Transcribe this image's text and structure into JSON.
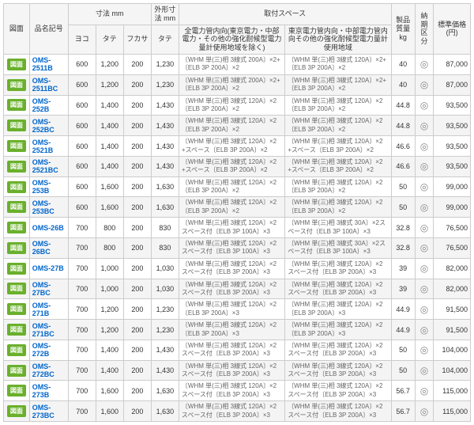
{
  "colors": {
    "button_bg": "#6ab02c",
    "button_fg": "#ffffff",
    "link": "#0066cc",
    "header_bg": "#f5f5f5",
    "row_even": "#f4f4f4",
    "row_odd": "#ffffff",
    "border": "#cccccc",
    "spec_text": "#666666"
  },
  "headers": {
    "btn": "図面",
    "name": "品名記号",
    "dim_group": "寸法 mm",
    "dim_w": "ヨコ",
    "dim_h": "タテ",
    "dim_d": "フカサ",
    "outer_group": "外形寸法 mm",
    "outer_h": "タテ",
    "spec_group": "取付スペース",
    "spec_a": "全電力管内向(東京電力・中部電力・その他の強化耐候型電力量計使用地域を除く)",
    "spec_b": "東京電力管内向・中部電力管内向その他の強化耐候型電力量計使用地域",
    "weight": "製品質量 kg",
    "status": "納期区分",
    "price": "標準価格 (円)"
  },
  "button_label": "図面",
  "status_glyph": "◎",
  "rows": [
    {
      "name": "OMS-2511B",
      "w": "600",
      "h": "1,200",
      "d": "200",
      "oh": "1,230",
      "sa": "〔WHM 単(三)相 3線式 200A〕×2+〔ELB 3P 200A〕×2",
      "sb": "〔WHM 単(三)相 3線式 120A〕×2+〔ELB 3P 200A〕×2",
      "wt": "40",
      "price": "87,000"
    },
    {
      "name": "OMS-2511BC",
      "w": "600",
      "h": "1,200",
      "d": "200",
      "oh": "1,230",
      "sa": "〔WHM 単(三)相 3線式 200A〕×2+〔ELB 3P 200A〕×2",
      "sb": "〔WHM 単(三)相 3線式 120A〕×2+〔ELB 3P 200A〕×2",
      "wt": "40",
      "price": "87,000"
    },
    {
      "name": "OMS-252B",
      "w": "600",
      "h": "1,400",
      "d": "200",
      "oh": "1,430",
      "sa": "〔WHM 単(三)相 3線式 120A〕×2 〔ELB 3P 200A〕×2",
      "sb": "〔WHM 単(三)相 3線式 120A〕×2 〔ELB 3P 200A〕×2",
      "wt": "44.8",
      "price": "93,500"
    },
    {
      "name": "OMS-252BC",
      "w": "600",
      "h": "1,400",
      "d": "200",
      "oh": "1,430",
      "sa": "〔WHM 単(三)相 3線式 120A〕×2 〔ELB 3P 200A〕×2",
      "sb": "〔WHM 単(三)相 3線式 120A〕×2 〔ELB 3P 200A〕×2",
      "wt": "44.8",
      "price": "93,500"
    },
    {
      "name": "OMS-2521B",
      "w": "600",
      "h": "1,400",
      "d": "200",
      "oh": "1,430",
      "sa": "〔WHM 単(三)相 3線式 120A〕×2+スペース〔ELB 3P 200A〕×2",
      "sb": "〔WHM 単(三)相 3線式 120A〕×2+スペース〔ELB 3P 200A〕×2",
      "wt": "46.6",
      "price": "93,500"
    },
    {
      "name": "OMS-2521BC",
      "w": "600",
      "h": "1,400",
      "d": "200",
      "oh": "1,430",
      "sa": "〔WHM 単(三)相 3線式 120A〕×2+スペース〔ELB 3P 200A〕×2",
      "sb": "〔WHM 単(三)相 3線式 120A〕×2+スペース〔ELB 3P 200A〕×2",
      "wt": "46.6",
      "price": "93,500"
    },
    {
      "name": "OMS-253B",
      "w": "600",
      "h": "1,600",
      "d": "200",
      "oh": "1,630",
      "sa": "〔WHM 単(三)相 3線式 120A〕×2 〔ELB 3P 200A〕×2",
      "sb": "〔WHM 単(三)相 3線式 120A〕×2 〔ELB 3P 200A〕×2",
      "wt": "50",
      "price": "99,000"
    },
    {
      "name": "OMS-253BC",
      "w": "600",
      "h": "1,600",
      "d": "200",
      "oh": "1,630",
      "sa": "〔WHM 単(三)相 3線式 120A〕×2 〔ELB 3P 200A〕×2",
      "sb": "〔WHM 単(三)相 3線式 120A〕×2 〔ELB 3P 200A〕×2",
      "wt": "50",
      "price": "99,000"
    },
    {
      "name": "OMS-26B",
      "w": "700",
      "h": "800",
      "d": "200",
      "oh": "830",
      "sa": "〔WHM 単(三)相 3線式 120A〕×2スペース付〔ELB 3P 100A〕×3",
      "sb": "〔WHM 単(三)相 3線式 30A〕×2スペース付〔ELB 3P 100A〕×3",
      "wt": "32.8",
      "price": "76,500"
    },
    {
      "name": "OMS-26BC",
      "w": "700",
      "h": "800",
      "d": "200",
      "oh": "830",
      "sa": "〔WHM 単(三)相 3線式 120A〕×2スペース付〔ELB 3P 100A〕×3",
      "sb": "〔WHM 単(三)相 3線式 30A〕×2スペース付〔ELB 3P 100A〕×3",
      "wt": "32.8",
      "price": "76,500"
    },
    {
      "name": "OMS-27B",
      "w": "700",
      "h": "1,000",
      "d": "200",
      "oh": "1,030",
      "sa": "〔WHM 単(三)相 3線式 120A〕×2スペース付〔ELB 3P 200A〕×3",
      "sb": "〔WHM 単(三)相 3線式 120A〕×2スペース付〔ELB 3P 200A〕×3",
      "wt": "39",
      "price": "82,000"
    },
    {
      "name": "OMS-27BC",
      "w": "700",
      "h": "1,000",
      "d": "200",
      "oh": "1,030",
      "sa": "〔WHM 単(三)相 3線式 120A〕×2スペース付〔ELB 3P 200A〕×3",
      "sb": "〔WHM 単(三)相 3線式 120A〕×2スペース付〔ELB 3P 200A〕×3",
      "wt": "39",
      "price": "82,000"
    },
    {
      "name": "OMS-271B",
      "w": "700",
      "h": "1,200",
      "d": "200",
      "oh": "1,230",
      "sa": "〔WHM 単(三)相 3線式 120A〕×2 〔ELB 3P 200A〕×3",
      "sb": "〔WHM 単(三)相 3線式 120A〕×2 〔ELB 3P 200A〕×3",
      "wt": "44.9",
      "price": "91,500"
    },
    {
      "name": "OMS-271BC",
      "w": "700",
      "h": "1,200",
      "d": "200",
      "oh": "1,230",
      "sa": "〔WHM 単(三)相 3線式 120A〕×2 〔ELB 3P 200A〕×3",
      "sb": "〔WHM 単(三)相 3線式 120A〕×2 〔ELB 3P 200A〕×3",
      "wt": "44.9",
      "price": "91,500"
    },
    {
      "name": "OMS-272B",
      "w": "700",
      "h": "1,400",
      "d": "200",
      "oh": "1,430",
      "sa": "〔WHM 単(三)相 3線式 120A〕×2スペース付〔ELB 3P 200A〕×3",
      "sb": "〔WHM 単(三)相 3線式 120A〕×2スペース付〔ELB 3P 200A〕×3",
      "wt": "50",
      "price": "104,000"
    },
    {
      "name": "OMS-272BC",
      "w": "700",
      "h": "1,400",
      "d": "200",
      "oh": "1,430",
      "sa": "〔WHM 単(三)相 3線式 120A〕×2スペース付〔ELB 3P 200A〕×3",
      "sb": "〔WHM 単(三)相 3線式 120A〕×2スペース付〔ELB 3P 200A〕×3",
      "wt": "50",
      "price": "104,000"
    },
    {
      "name": "OMS-273B",
      "w": "700",
      "h": "1,600",
      "d": "200",
      "oh": "1,630",
      "sa": "〔WHM 単(三)相 3線式 120A〕×2スペース付〔ELB 3P 200A〕×3",
      "sb": "〔WHM 単(三)相 3線式 120A〕×2スペース付〔ELB 3P 200A〕×3",
      "wt": "56.7",
      "price": "115,000"
    },
    {
      "name": "OMS-273BC",
      "w": "700",
      "h": "1,600",
      "d": "200",
      "oh": "1,630",
      "sa": "〔WHM 単(三)相 3線式 120A〕×2スペース付〔ELB 3P 200A〕×3",
      "sb": "〔WHM 単(三)相 3線式 120A〕×2スペース付〔ELB 3P 200A〕×3",
      "wt": "56.7",
      "price": "115,000"
    }
  ]
}
